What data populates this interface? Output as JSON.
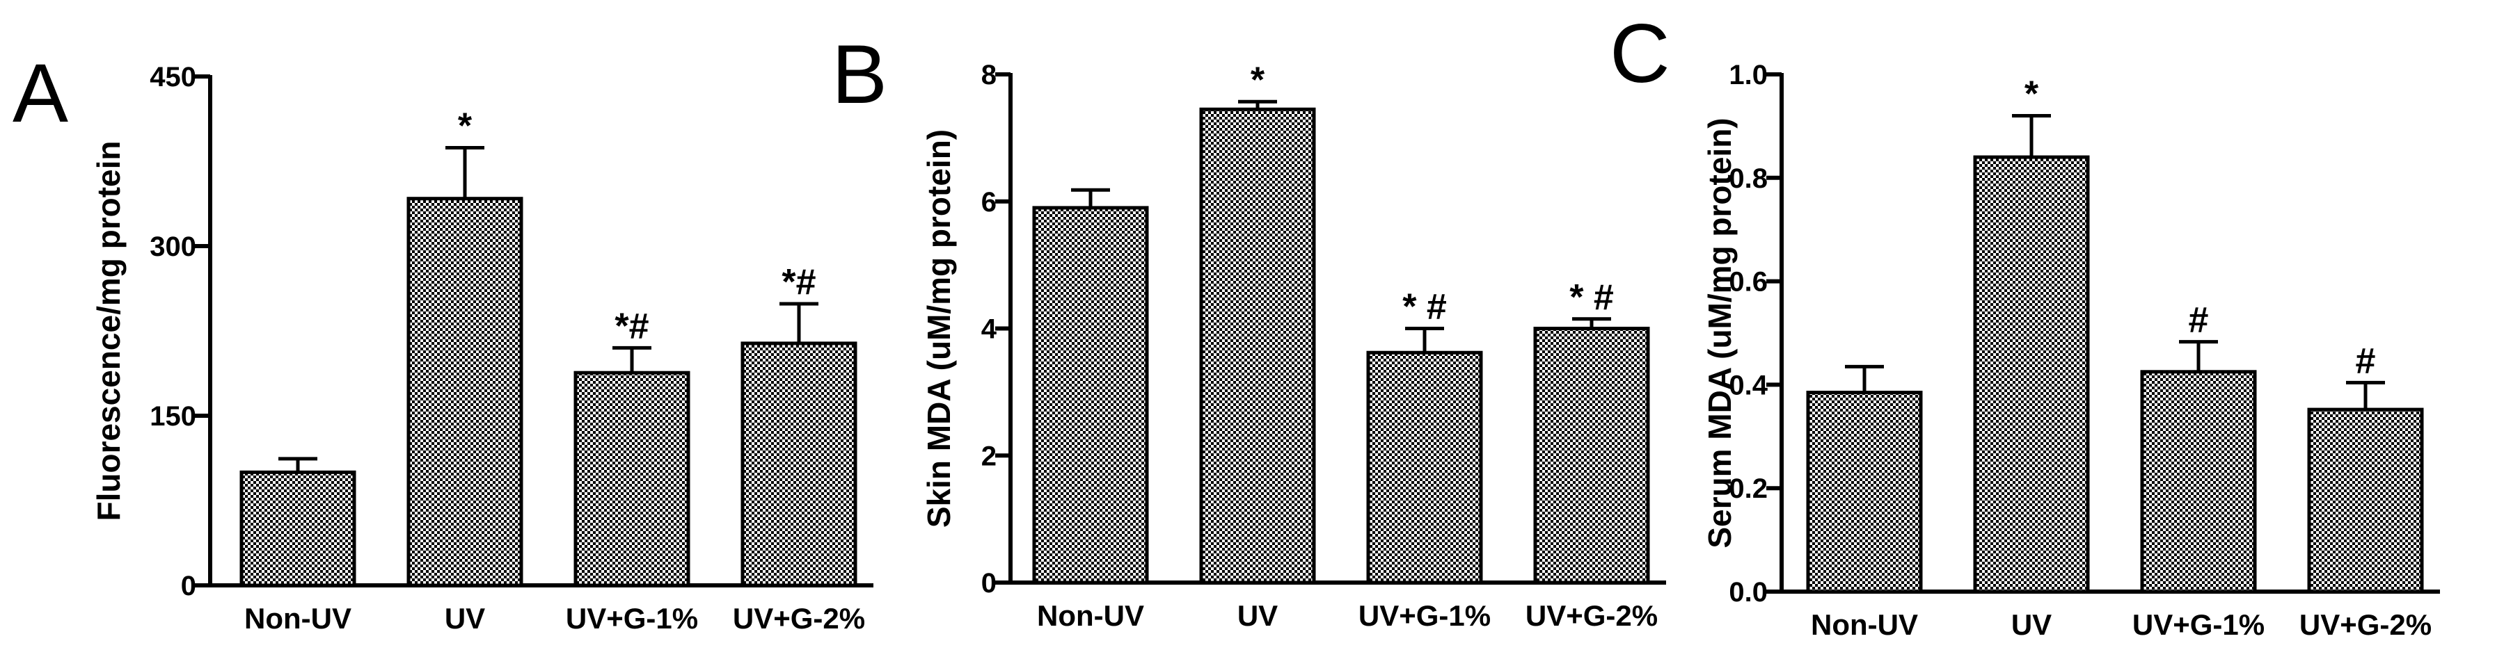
{
  "chart_data": [
    {
      "type": "bar",
      "panel": "A",
      "categories": [
        "Non-UV",
        "UV",
        "UV+G-1%",
        "UV+G-2%"
      ],
      "values": [
        100,
        342,
        188,
        214
      ],
      "errors": [
        12,
        45,
        22,
        35
      ],
      "annotations": [
        "",
        "*",
        "*#",
        "*#"
      ],
      "ylabel": "Fluorescence/mg protein",
      "ylim": [
        0,
        450
      ],
      "yticks": [
        0,
        150,
        300,
        450
      ],
      "ytick_labels": [
        "0",
        "150",
        "300",
        "450"
      ]
    },
    {
      "type": "bar",
      "panel": "B",
      "categories": [
        "Non-UV",
        "UV",
        "UV+G-1%",
        "UV+G-2%"
      ],
      "values": [
        5.9,
        7.45,
        3.62,
        4.0
      ],
      "errors": [
        0.28,
        0.12,
        0.38,
        0.15
      ],
      "annotations": [
        "",
        "*",
        "* #",
        "* #"
      ],
      "ylabel": "Skin MDA (uM/mg protein)",
      "ylim": [
        0,
        8
      ],
      "yticks": [
        0,
        2,
        4,
        6,
        8
      ],
      "ytick_labels": [
        "0",
        "2",
        "4",
        "6",
        "8"
      ]
    },
    {
      "type": "bar",
      "panel": "C",
      "categories": [
        "Non-UV",
        "UV",
        "UV+G-1%",
        "UV+G-2%"
      ],
      "values": [
        0.385,
        0.84,
        0.425,
        0.352
      ],
      "errors": [
        0.05,
        0.08,
        0.058,
        0.052
      ],
      "annotations": [
        "",
        "*",
        "#",
        "#"
      ],
      "ylabel": "Serum MDA (uM/mg protein)",
      "ylim": [
        0,
        1.0
      ],
      "yticks": [
        0,
        0.2,
        0.4,
        0.6,
        0.8,
        1.0
      ],
      "ytick_labels": [
        "0.0",
        "0.2",
        "0.4",
        "0.6",
        "0.8",
        "1.0"
      ]
    }
  ],
  "colors": {
    "bar_fill": "#000000",
    "bar_fill_pattern": "checkerboard",
    "bar_stroke": "#000000",
    "axis": "#000000",
    "background": "#ffffff"
  }
}
